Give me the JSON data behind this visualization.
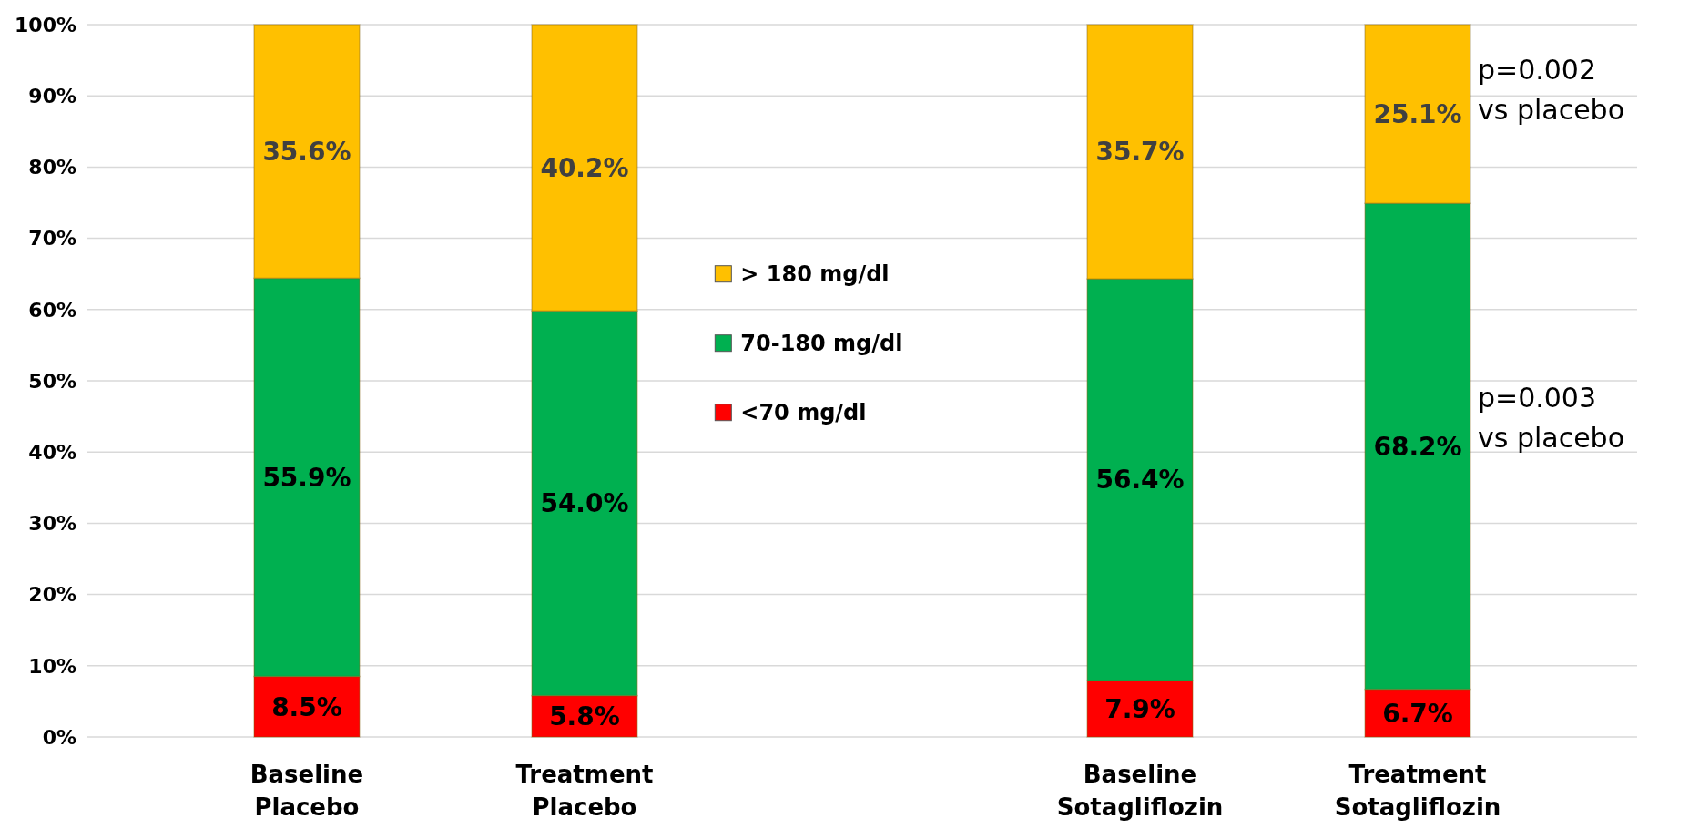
{
  "chart_data": {
    "type": "bar",
    "stacked": true,
    "categories": [
      "Baseline Placebo",
      "Treatment Placebo",
      null,
      "Baseline Sotagliflozin",
      "Treatment Sotagliflozin"
    ],
    "series": [
      {
        "name": "<70 mg/dl",
        "color": "#ff0000",
        "values": [
          8.5,
          5.8,
          null,
          7.9,
          6.7
        ]
      },
      {
        "name": "70-180 mg/dl",
        "color": "#00b050",
        "values": [
          55.9,
          54.0,
          null,
          56.4,
          68.2
        ]
      },
      {
        "name": "> 180 mg/dl",
        "color": "#ffc000",
        "values": [
          35.6,
          40.2,
          null,
          35.7,
          25.1
        ]
      }
    ],
    "value_labels": [
      [
        "8.5%",
        "5.8%",
        null,
        "7.9%",
        "6.7%"
      ],
      [
        "55.9%",
        "54.0%",
        null,
        "56.4%",
        "68.2%"
      ],
      [
        "35.6%",
        "40.2%",
        null,
        "35.7%",
        "25.1%"
      ]
    ],
    "ylim": [
      0,
      100
    ],
    "yticks": [
      {
        "value": 0,
        "label": "0%"
      },
      {
        "value": 10,
        "label": "10%"
      },
      {
        "value": 20,
        "label": "20%"
      },
      {
        "value": 30,
        "label": "30%"
      },
      {
        "value": 40,
        "label": "40%"
      },
      {
        "value": 50,
        "label": "50%"
      },
      {
        "value": 60,
        "label": "60%"
      },
      {
        "value": 70,
        "label": "70%"
      },
      {
        "value": 80,
        "label": "80%"
      },
      {
        "value": 90,
        "label": "90%"
      },
      {
        "value": 100,
        "label": "100%"
      }
    ],
    "grid": "y",
    "legend": "center",
    "annotations": [
      "p=0.002 vs placebo",
      "p=0.003 vs placebo"
    ]
  }
}
